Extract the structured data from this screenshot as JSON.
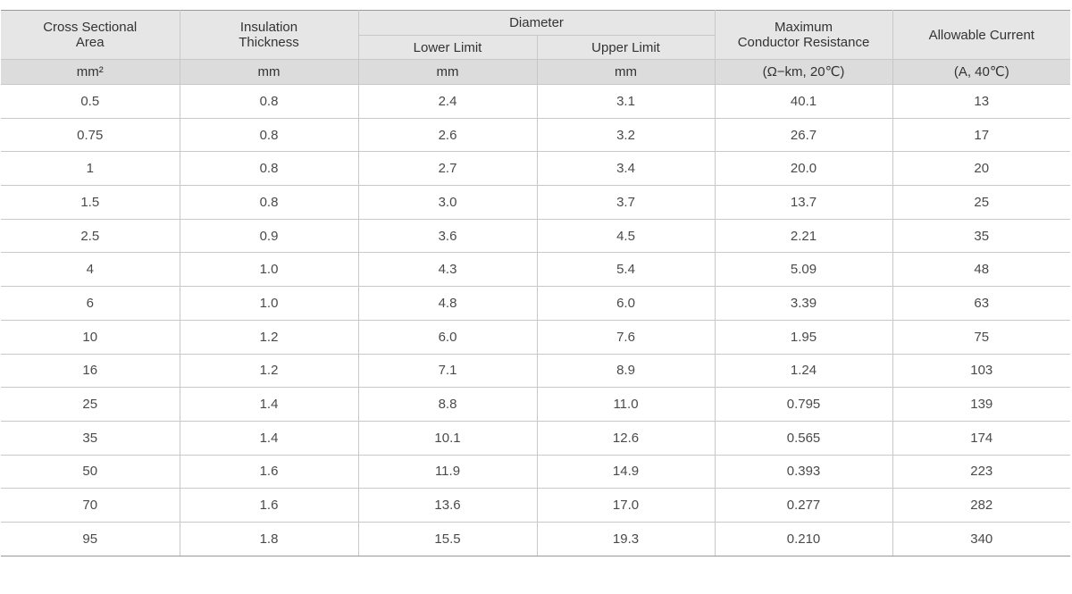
{
  "headers": {
    "cross_sectional_area": "Cross Sectional\nArea",
    "insulation_thickness": "Insulation\nThickness",
    "diameter": "Diameter",
    "lower_limit": "Lower Limit",
    "upper_limit": "Upper Limit",
    "max_conductor_resistance": "Maximum\nConductor Resistance",
    "allowable_current": "Allowable Current"
  },
  "units": {
    "cross_sectional_area": "mm²",
    "insulation_thickness": "mm",
    "lower_limit": "mm",
    "upper_limit": "mm",
    "max_conductor_resistance": "(Ω−km, 20℃)",
    "allowable_current": "(A, 40℃)"
  },
  "rows": [
    {
      "area": "0.5",
      "insulation": "0.8",
      "lower": "2.4",
      "upper": "3.1",
      "resistance": "40.1",
      "current": "13"
    },
    {
      "area": "0.75",
      "insulation": "0.8",
      "lower": "2.6",
      "upper": "3.2",
      "resistance": "26.7",
      "current": "17"
    },
    {
      "area": "1",
      "insulation": "0.8",
      "lower": "2.7",
      "upper": "3.4",
      "resistance": "20.0",
      "current": "20"
    },
    {
      "area": "1.5",
      "insulation": "0.8",
      "lower": "3.0",
      "upper": "3.7",
      "resistance": "13.7",
      "current": "25"
    },
    {
      "area": "2.5",
      "insulation": "0.9",
      "lower": "3.6",
      "upper": "4.5",
      "resistance": "2.21",
      "current": "35"
    },
    {
      "area": "4",
      "insulation": "1.0",
      "lower": "4.3",
      "upper": "5.4",
      "resistance": "5.09",
      "current": "48"
    },
    {
      "area": "6",
      "insulation": "1.0",
      "lower": "4.8",
      "upper": "6.0",
      "resistance": "3.39",
      "current": "63"
    },
    {
      "area": "10",
      "insulation": "1.2",
      "lower": "6.0",
      "upper": "7.6",
      "resistance": "1.95",
      "current": "75"
    },
    {
      "area": "16",
      "insulation": "1.2",
      "lower": "7.1",
      "upper": "8.9",
      "resistance": "1.24",
      "current": "103"
    },
    {
      "area": "25",
      "insulation": "1.4",
      "lower": "8.8",
      "upper": "11.0",
      "resistance": "0.795",
      "current": "139"
    },
    {
      "area": "35",
      "insulation": "1.4",
      "lower": "10.1",
      "upper": "12.6",
      "resistance": "0.565",
      "current": "174"
    },
    {
      "area": "50",
      "insulation": "1.6",
      "lower": "11.9",
      "upper": "14.9",
      "resistance": "0.393",
      "current": "223"
    },
    {
      "area": "70",
      "insulation": "1.6",
      "lower": "13.6",
      "upper": "17.0",
      "resistance": "0.277",
      "current": "282"
    },
    {
      "area": "95",
      "insulation": "1.8",
      "lower": "15.5",
      "upper": "19.3",
      "resistance": "0.210",
      "current": "340"
    }
  ]
}
